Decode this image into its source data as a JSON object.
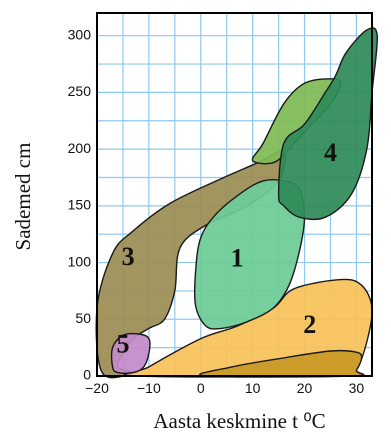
{
  "chart_data": {
    "type": "area",
    "title": "",
    "xlabel": "Aasta keskmine t ⁰C",
    "ylabel": "Sademed cm",
    "xlim": [
      -20,
      33
    ],
    "ylim": [
      0,
      320
    ],
    "grid": true,
    "grid_color": "#8ec9ee",
    "x_ticks": [
      {
        "value": -20,
        "label": "−20"
      },
      {
        "value": -10,
        "label": "−10"
      },
      {
        "value": 0,
        "label": "0"
      },
      {
        "value": 10,
        "label": "10"
      },
      {
        "value": 20,
        "label": "20"
      },
      {
        "value": 30,
        "label": "30"
      }
    ],
    "y_ticks": [
      {
        "value": 0,
        "label": "0"
      },
      {
        "value": 50,
        "label": "50"
      },
      {
        "value": 100,
        "label": "100"
      },
      {
        "value": 150,
        "label": "150"
      },
      {
        "value": 200,
        "label": "200"
      },
      {
        "value": 250,
        "label": "250"
      },
      {
        "value": 300,
        "label": "300"
      }
    ],
    "regions": [
      {
        "label": "3",
        "color": "#9b8d54",
        "label_at": [
          -14,
          103
        ],
        "points": [
          [
            -19,
            3
          ],
          [
            -20,
            60
          ],
          [
            -17,
            108
          ],
          [
            -13,
            128
          ],
          [
            -6,
            152
          ],
          [
            3,
            172
          ],
          [
            11,
            188
          ],
          [
            16,
            198
          ],
          [
            15,
            172
          ],
          [
            9,
            150
          ],
          [
            1,
            133
          ],
          [
            -4,
            113
          ],
          [
            -5,
            75
          ],
          [
            -7,
            50
          ],
          [
            -10,
            42
          ],
          [
            -13,
            33
          ],
          [
            -15,
            20
          ],
          [
            -16,
            8
          ],
          [
            -13,
            3
          ]
        ]
      },
      {
        "label": "",
        "color": "#7fba55",
        "label_at": [
          12,
          205
        ],
        "points": [
          [
            10,
            190
          ],
          [
            12,
            205
          ],
          [
            16,
            240
          ],
          [
            20,
            258
          ],
          [
            25,
            262
          ],
          [
            27,
            258
          ],
          [
            25,
            240
          ],
          [
            21,
            220
          ],
          [
            17,
            200
          ],
          [
            14,
            188
          ]
        ]
      },
      {
        "label": "2",
        "color": "#f7c258",
        "label_at": [
          21,
          43
        ],
        "points": [
          [
            -12,
            0
          ],
          [
            -10,
            8
          ],
          [
            0,
            33
          ],
          [
            7,
            44
          ],
          [
            14,
            60
          ],
          [
            18,
            77
          ],
          [
            27,
            85
          ],
          [
            31,
            80
          ],
          [
            33,
            60
          ],
          [
            32,
            30
          ],
          [
            30,
            5
          ],
          [
            28,
            0
          ]
        ]
      },
      {
        "label": "",
        "color": "#c99a28",
        "label_at": [
          20,
          10
        ],
        "points": [
          [
            1,
            0
          ],
          [
            6,
            8
          ],
          [
            16,
            16
          ],
          [
            25,
            22
          ],
          [
            30,
            21
          ],
          [
            31,
            16
          ],
          [
            30,
            5
          ],
          [
            29,
            0
          ]
        ]
      },
      {
        "label": "5",
        "color": "#c38ac9",
        "label_at": [
          -15,
          26
        ],
        "points": [
          [
            -17,
            8
          ],
          [
            -17,
            25
          ],
          [
            -15,
            36
          ],
          [
            -12,
            37
          ],
          [
            -10,
            33
          ],
          [
            -10,
            20
          ],
          [
            -11,
            8
          ],
          [
            -13,
            3
          ],
          [
            -16,
            3
          ]
        ]
      },
      {
        "label": "1",
        "color": "#6ccb96",
        "label_at": [
          7,
          102
        ],
        "points": [
          [
            1,
            44
          ],
          [
            -1,
            62
          ],
          [
            -1,
            92
          ],
          [
            0,
            122
          ],
          [
            3,
            143
          ],
          [
            8,
            162
          ],
          [
            12,
            172
          ],
          [
            16,
            172
          ],
          [
            19,
            165
          ],
          [
            20,
            140
          ],
          [
            19,
            110
          ],
          [
            17,
            80
          ],
          [
            14,
            60
          ],
          [
            9,
            48
          ],
          [
            4,
            42
          ]
        ]
      },
      {
        "label": "4",
        "color": "#2e8b57",
        "label_at": [
          25,
          195
        ],
        "points": [
          [
            15,
            160
          ],
          [
            16,
            205
          ],
          [
            20,
            222
          ],
          [
            24,
            250
          ],
          [
            26,
            265
          ],
          [
            28,
            285
          ],
          [
            32,
            305
          ],
          [
            34,
            300
          ],
          [
            33,
            250
          ],
          [
            32,
            200
          ],
          [
            29,
            160
          ],
          [
            24,
            140
          ],
          [
            19,
            140
          ],
          [
            16,
            150
          ]
        ]
      }
    ]
  }
}
